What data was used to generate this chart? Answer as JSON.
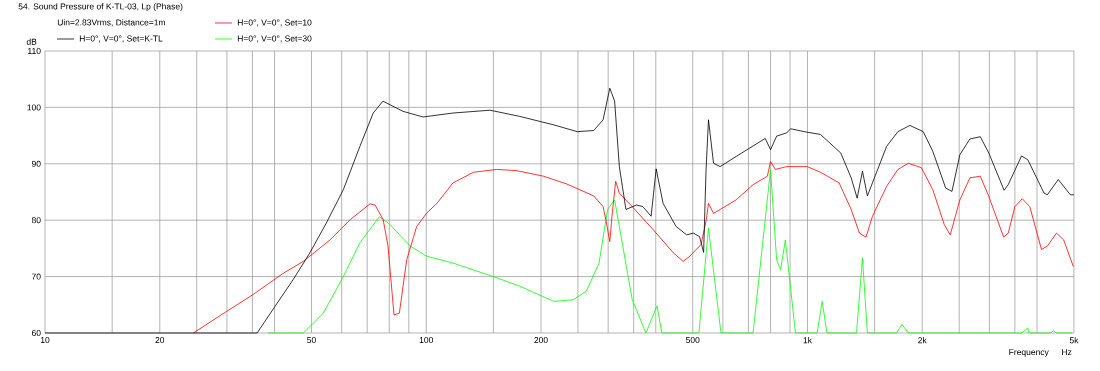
{
  "chart_data": {
    "type": "line",
    "title": "54. Sound Pressure of K-TL-03, Lp (Phase)",
    "subtitle": "Uin=2.83Vrms, Distance=1m",
    "xlabel": "Frequency",
    "ylabel": "dB",
    "annotations": [
      "Hz"
    ],
    "log": "x",
    "grid": true,
    "legend": "top left",
    "xlim": [
      10,
      5000
    ],
    "ylim": [
      60,
      110
    ],
    "xticks": [
      10,
      {
        "value": 15,
        "label": null
      },
      20,
      {
        "value": 25,
        "label": null
      },
      {
        "value": 30,
        "label": null
      },
      {
        "value": 35,
        "label": null
      },
      {
        "value": 40,
        "label": null
      },
      50,
      {
        "value": 60,
        "label": null
      },
      {
        "value": 70,
        "label": null
      },
      {
        "value": 80,
        "label": null
      },
      {
        "value": 90,
        "label": null
      },
      100,
      {
        "value": 150,
        "label": null
      },
      200,
      {
        "value": 250,
        "label": null
      },
      {
        "value": 300,
        "label": null
      },
      {
        "value": 350,
        "label": null
      },
      {
        "value": 400,
        "label": null
      },
      500,
      {
        "value": 600,
        "label": null
      },
      {
        "value": 700,
        "label": null
      },
      {
        "value": 800,
        "label": null
      },
      {
        "value": 900,
        "label": null
      },
      {
        "value": 1000,
        "label": "1k"
      },
      {
        "value": 1500,
        "label": null
      },
      {
        "value": 2000,
        "label": "2k"
      },
      {
        "value": 2500,
        "label": null
      },
      {
        "value": 3000,
        "label": null
      },
      {
        "value": 3500,
        "label": null
      },
      {
        "value": 4000,
        "label": null
      },
      {
        "value": 5000,
        "label": "5k"
      }
    ],
    "yticks": [
      60,
      70,
      80,
      90,
      100,
      110
    ],
    "series": [
      {
        "name": "H=0°, V=0°, Set=K-TL",
        "color": "#000000",
        "x": [
          10,
          36,
          40.1,
          44.8,
          49.5,
          54.7,
          60.6,
          67,
          72.6,
          77,
          86.9,
          98.1,
          117.5,
          147,
          176,
          216,
          249,
          275,
          291,
          303,
          312,
          321,
          334,
          356,
          370,
          389,
          401,
          418,
          452,
          482,
          502,
          521,
          534,
          542,
          550,
          567,
          590,
          650,
          775,
          800,
          830,
          882,
          904,
          998,
          1082,
          1223,
          1302,
          1350,
          1394,
          1436,
          1613,
          1727,
          1856,
          2012,
          2132,
          2304,
          2393,
          2510,
          2667,
          2840,
          2990,
          3280,
          3362,
          3644,
          3785,
          4174,
          4257,
          4549,
          4893,
          5000
        ],
        "values": [
          60,
          60,
          64.7,
          69.5,
          74.2,
          79.5,
          85.4,
          93.1,
          99,
          101.1,
          99.3,
          98.3,
          99,
          99.5,
          98.4,
          96.9,
          95.7,
          95.9,
          97.8,
          103.4,
          101.1,
          89.5,
          81.9,
          82.7,
          82.4,
          80.7,
          89.1,
          83,
          78.9,
          77.4,
          77.7,
          77.1,
          74.3,
          89,
          97.8,
          90.1,
          89.5,
          91.3,
          94.5,
          92.5,
          94.9,
          95.5,
          96.2,
          95.6,
          95.2,
          91.9,
          87.5,
          83.9,
          88.7,
          84.3,
          93.1,
          95.7,
          96.8,
          95.7,
          92.2,
          85.7,
          85.1,
          91.6,
          94.4,
          94.8,
          91.9,
          85.3,
          86.3,
          91.4,
          90.7,
          84.8,
          84.5,
          87.2,
          84.5,
          84.5
        ]
      },
      {
        "name": "H=0°, V=0°, Set=10",
        "color": "#ff0000",
        "x": [
          24.5,
          29.9,
          35.1,
          42.2,
          47.6,
          55.9,
          63.2,
          71.2,
          73.4,
          77.1,
          79.4,
          82.3,
          85,
          88.9,
          94.4,
          100.4,
          106.7,
          117.5,
          133,
          153,
          172,
          203,
          234,
          275,
          291,
          297,
          303,
          307,
          314,
          321,
          347,
          394,
          445,
          472,
          491,
          526,
          543,
          550,
          567,
          590,
          650,
          720,
          785,
          800,
          824,
          882,
          998,
          1082,
          1211,
          1302,
          1369,
          1424,
          1481,
          1613,
          1727,
          1840,
          1990,
          2132,
          2285,
          2369,
          2510,
          2667,
          2840,
          2990,
          3270,
          3362,
          3500,
          3660,
          3830,
          4110,
          4257,
          4500,
          4700,
          4980
        ],
        "values": [
          60,
          63.8,
          66.8,
          70.6,
          72.7,
          76.5,
          80.1,
          82.9,
          82.7,
          80.1,
          75.4,
          63.2,
          63.5,
          73,
          78.9,
          81.3,
          83,
          86.6,
          88.5,
          89,
          88.8,
          87.8,
          86.4,
          84.3,
          82.4,
          79.5,
          76.2,
          80.7,
          86.9,
          84.8,
          82.4,
          78.3,
          74.2,
          72.7,
          73.6,
          75.7,
          80.1,
          83,
          81.2,
          81.9,
          83.6,
          86.3,
          87.8,
          90.4,
          89,
          89.5,
          89.5,
          88.5,
          86.6,
          81.9,
          77.7,
          77,
          80.7,
          86,
          89,
          90.1,
          89.3,
          85.4,
          79.2,
          77.4,
          83.6,
          87.5,
          87.8,
          84.2,
          77,
          77.7,
          82.4,
          83.8,
          82.4,
          74.8,
          75.4,
          77.7,
          76.5,
          71.8
        ]
      },
      {
        "name": "H=0°, V=0°, Set=30",
        "color": "#00ff00",
        "x": [
          38.5,
          47.6,
          53.7,
          60.6,
          67,
          75.3,
          79.6,
          90.8,
          100.4,
          117.5,
          150,
          176,
          216,
          243,
          263,
          284,
          299,
          312,
          321,
          347,
          377,
          403,
          415,
          519,
          550,
          593,
          720,
          800,
          830,
          850,
          875,
          930,
          1060,
          1093,
          1125,
          1345,
          1394,
          1436,
          1710,
          1770,
          1840,
          3650,
          3785,
          3810,
          4330,
          4420,
          4490,
          4950
        ],
        "values": [
          60,
          60,
          63.5,
          70,
          76,
          80.6,
          79.5,
          75.4,
          73.6,
          72.4,
          70,
          68.3,
          65.6,
          65.9,
          67.4,
          72.4,
          81.9,
          83.6,
          78.9,
          65.9,
          60,
          64.8,
          60,
          60,
          78.6,
          60,
          60,
          89,
          73,
          71.2,
          76.5,
          60,
          60,
          65.6,
          60,
          60,
          73.3,
          60,
          60,
          61.5,
          60,
          60,
          60.9,
          60,
          60,
          60.4,
          60,
          60
        ]
      }
    ]
  }
}
